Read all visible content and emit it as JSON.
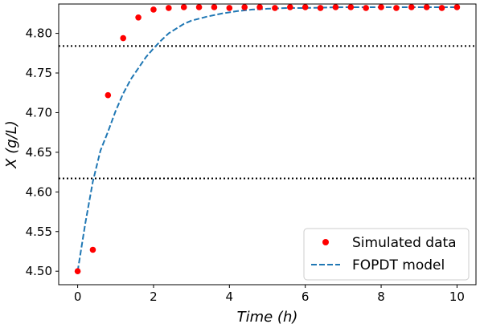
{
  "chart_data": {
    "type": "line",
    "xlabel": "Time  (h)",
    "ylabel": "X  (g/L)",
    "xlim": [
      -0.5,
      10.5
    ],
    "ylim": [
      4.483,
      4.837
    ],
    "x_ticks": [
      0,
      2,
      4,
      6,
      8,
      10
    ],
    "y_ticks": [
      4.5,
      4.55,
      4.6,
      4.65,
      4.7,
      4.75,
      4.8
    ],
    "x_tick_labels": [
      "0",
      "2",
      "4",
      "6",
      "8",
      "10"
    ],
    "y_tick_labels": [
      "4.50",
      "4.55",
      "4.60",
      "4.65",
      "4.70",
      "4.75",
      "4.80"
    ],
    "grid": false,
    "legend_position": "bottom-right",
    "series": [
      {
        "name": "Simulated data",
        "style": "markers",
        "color": "#ff0000",
        "x": [
          0,
          0.4,
          0.8,
          1.2,
          1.6,
          2.0,
          2.4,
          2.8,
          3.2,
          3.6,
          4.0,
          4.4,
          4.8,
          5.2,
          5.6,
          6.0,
          6.4,
          6.8,
          7.2,
          7.6,
          8.0,
          8.4,
          8.8,
          9.2,
          9.6,
          10.0
        ],
        "y": [
          4.5,
          4.527,
          4.722,
          4.794,
          4.82,
          4.83,
          4.832,
          4.833,
          4.833,
          4.833,
          4.832,
          4.833,
          4.833,
          4.832,
          4.833,
          4.833,
          4.832,
          4.833,
          4.833,
          4.832,
          4.833,
          4.832,
          4.833,
          4.833,
          4.832,
          4.833
        ]
      },
      {
        "name": "FOPDT model",
        "style": "dashed",
        "color": "#1f77b4",
        "x": [
          0,
          0.2,
          0.4,
          0.6,
          0.8,
          1.0,
          1.2,
          1.4,
          1.6,
          1.8,
          2.0,
          2.2,
          2.4,
          2.6,
          2.8,
          3.0,
          3.4,
          3.8,
          4.2,
          4.6,
          5.0,
          5.5,
          6.0,
          7.0,
          8.0,
          9.0,
          10.0
        ],
        "y": [
          4.5,
          4.56,
          4.613,
          4.652,
          4.676,
          4.702,
          4.724,
          4.742,
          4.756,
          4.77,
          4.781,
          4.791,
          4.8,
          4.806,
          4.812,
          4.816,
          4.821,
          4.825,
          4.828,
          4.83,
          4.831,
          4.832,
          4.832,
          4.833,
          4.833,
          4.833,
          4.833
        ]
      }
    ],
    "reference_lines": [
      {
        "y": 4.784,
        "style": "dotted",
        "color": "#000000"
      },
      {
        "y": 4.617,
        "style": "dotted",
        "color": "#000000"
      }
    ]
  }
}
